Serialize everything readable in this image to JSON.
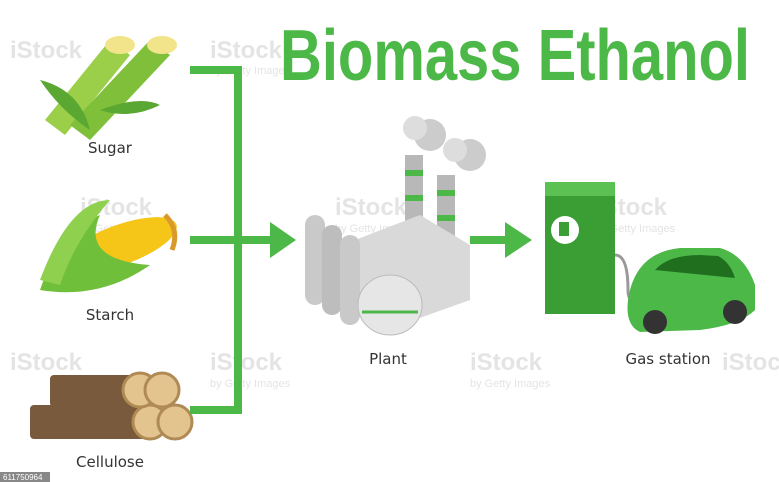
{
  "title": "Biomass Ethanol",
  "sources": [
    {
      "label": "Sugar"
    },
    {
      "label": "Starch"
    },
    {
      "label": "Cellulose"
    }
  ],
  "plant": {
    "label": "Plant"
  },
  "destination": {
    "label": "Gas station"
  },
  "watermark": {
    "brand": "iStock",
    "credit": "by Getty Images",
    "id": "611750964"
  }
}
